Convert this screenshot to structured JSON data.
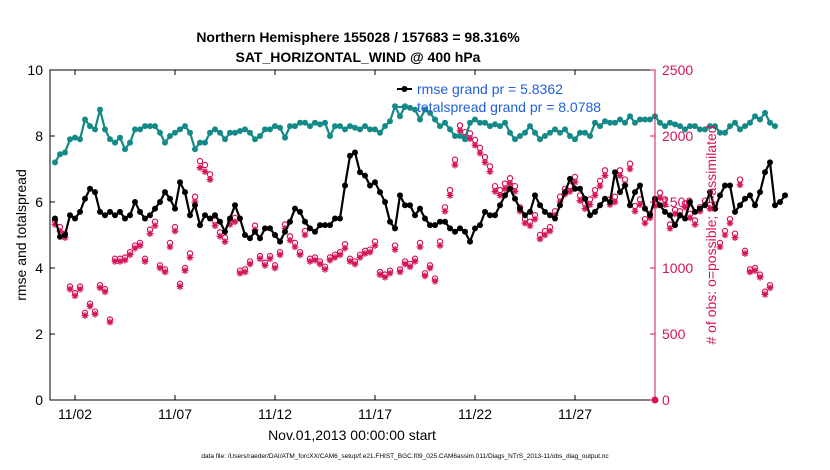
{
  "colors": {
    "rmse": "#000000",
    "spread": "#138a87",
    "obs": "#d4145a",
    "legend_text": "#1f5fd6",
    "axis": "#000000"
  },
  "chart_data": {
    "type": "line",
    "title_line1": "Northern Hemisphere 155028 / 157683 = 98.316%",
    "title_line2": "SAT_HORIZONTAL_WIND @ 400 hPa",
    "xlabel": "Nov.01,2013 00:00:00 start",
    "ylabel_left": "rmse and totalspread",
    "ylabel_right": "# of obs: o=possible; ×=assimilated",
    "footer": "data file: /Users/raeder/DAI/ATM_forcXX/CAM6_setup/f.e21.FHIST_BGC.f09_025.CAM6assim.011/Diags_NTrS_2013-11/obs_diag_output.nc",
    "x_ticks": [
      {
        "day": 2,
        "label": "11/02"
      },
      {
        "day": 7,
        "label": "11/07"
      },
      {
        "day": 12,
        "label": "11/12"
      },
      {
        "day": 17,
        "label": "11/17"
      },
      {
        "day": 22,
        "label": "11/22"
      },
      {
        "day": 27,
        "label": "11/27"
      }
    ],
    "xlim_days": [
      0.75,
      31.0
    ],
    "ylim_left": [
      0,
      10
    ],
    "yticks_left": [
      "0",
      "2",
      "4",
      "6",
      "8",
      "10"
    ],
    "ylim_right": [
      0,
      2500
    ],
    "yticks_right": [
      "0",
      "500",
      "1000",
      "1500",
      "2000",
      "2500"
    ],
    "legend": {
      "placement": "top-right",
      "entries": [
        {
          "series": "rmse",
          "label": "rmse grand pr = 5.8362"
        },
        {
          "series": "spread",
          "label": "totalspread grand pr = 8.0788"
        }
      ]
    },
    "time_step_days": 0.25,
    "start_day": 1.0,
    "series": [
      {
        "name": "rmse",
        "axis": "left",
        "values": [
          5.5,
          4.95,
          5.0,
          5.6,
          5.5,
          5.7,
          6.1,
          6.4,
          6.3,
          5.7,
          5.6,
          5.7,
          5.6,
          5.7,
          5.5,
          5.6,
          6.0,
          5.7,
          5.5,
          5.6,
          5.8,
          6.0,
          6.3,
          6.1,
          5.8,
          6.6,
          6.3,
          5.6,
          5.9,
          5.3,
          5.6,
          5.5,
          5.6,
          5.4,
          5.1,
          5.5,
          5.9,
          5.5,
          5.0,
          4.9,
          5.1,
          4.9,
          5.2,
          5.2,
          5.0,
          4.8,
          5.1,
          5.4,
          5.8,
          5.7,
          5.4,
          5.2,
          5.1,
          5.3,
          5.3,
          5.3,
          5.5,
          5.5,
          6.5,
          7.4,
          7.5,
          6.9,
          6.8,
          6.5,
          6.6,
          6.3,
          6.0,
          5.4,
          5.2,
          6.2,
          5.9,
          5.9,
          5.6,
          5.8,
          5.5,
          5.3,
          5.3,
          5.4,
          5.4,
          5.2,
          5.1,
          5.2,
          5.1,
          4.8,
          5.2,
          5.3,
          5.7,
          5.6,
          5.6,
          5.9,
          6.2,
          6.4,
          6.1,
          5.8,
          5.6,
          5.7,
          6.2,
          5.9,
          5.7,
          5.6,
          5.5,
          5.9,
          6.3,
          6.7,
          6.4,
          6.4,
          6.1,
          5.6,
          5.7,
          5.9,
          6.1,
          6.0,
          6.9,
          6.3,
          6.5,
          5.9,
          6.3,
          6.5,
          5.8,
          5.6,
          6.1,
          5.9,
          5.7,
          5.6,
          5.3,
          5.6,
          5.5,
          6.0,
          5.7,
          5.8,
          5.9,
          6.3,
          5.8,
          6.2,
          6.5,
          6.5,
          5.7,
          5.9,
          6.1,
          6.2,
          5.9,
          6.3,
          6.9,
          7.2,
          5.9,
          6.0,
          6.2
        ]
      },
      {
        "name": "totalspread",
        "axis": "left",
        "values": [
          7.2,
          7.45,
          7.5,
          7.9,
          7.95,
          7.9,
          8.5,
          8.3,
          8.2,
          8.8,
          8.2,
          7.9,
          7.8,
          7.95,
          7.6,
          7.8,
          8.2,
          8.2,
          8.3,
          8.3,
          8.3,
          8.1,
          7.8,
          8.0,
          8.1,
          8.2,
          8.3,
          8.1,
          7.6,
          7.8,
          7.8,
          8.1,
          8.2,
          8.1,
          7.9,
          8.1,
          8.1,
          8.15,
          8.2,
          8.1,
          7.9,
          8.0,
          8.2,
          8.2,
          8.3,
          8.25,
          7.95,
          8.3,
          8.3,
          8.4,
          8.4,
          8.3,
          8.4,
          8.35,
          8.4,
          8.0,
          8.3,
          8.3,
          8.2,
          8.3,
          8.25,
          8.2,
          8.3,
          8.2,
          8.2,
          8.1,
          8.3,
          8.45,
          8.9,
          8.6,
          8.9,
          8.85,
          8.8,
          8.5,
          8.8,
          8.7,
          8.5,
          8.3,
          8.4,
          8.2,
          8.0,
          8.0,
          7.9,
          8.4,
          8.5,
          8.4,
          8.4,
          8.3,
          8.35,
          8.3,
          8.4,
          8.1,
          7.9,
          8.0,
          8.1,
          8.3,
          8.1,
          7.9,
          8.0,
          8.1,
          8.2,
          8.1,
          8.2,
          8.0,
          7.9,
          8.1,
          8.1,
          8.0,
          8.4,
          8.3,
          8.45,
          8.4,
          8.4,
          8.5,
          8.4,
          8.6,
          8.4,
          8.5,
          8.5,
          8.5,
          8.6,
          8.4,
          8.3,
          8.4,
          8.35,
          8.3,
          8.2,
          8.3,
          8.3,
          8.2,
          8.2,
          8.3,
          8.3,
          8.1,
          8.1,
          8.3,
          8.4,
          8.2,
          8.3,
          8.4,
          8.6,
          8.5,
          8.7,
          8.4,
          8.3
        ]
      },
      {
        "name": "obs_assimilated",
        "axis": "right",
        "values": [
          1330,
          1280,
          1230,
          840,
          790,
          840,
          640,
          710,
          650,
          850,
          820,
          590,
          1050,
          1050,
          1060,
          1100,
          1150,
          1170,
          1050,
          1260,
          1320,
          1000,
          970,
          1160,
          1280,
          860,
          980,
          1080,
          1500,
          1760,
          1730,
          1670,
          1320,
          1240,
          1200,
          1330,
          1350,
          960,
          970,
          1030,
          1290,
          1070,
          1020,
          1070,
          1000,
          1100,
          1300,
          1210,
          1160,
          1100,
          1250,
          1050,
          1060,
          1030,
          990,
          1060,
          1080,
          1100,
          1150,
          1050,
          1030,
          1080,
          1110,
          1120,
          1170,
          950,
          930,
          960,
          1140,
          970,
          1030,
          1010,
          1050,
          1160,
          940,
          1000,
          900,
          1170,
          1430,
          1550,
          1780,
          2040,
          1990,
          1980,
          1930,
          1870,
          1800,
          1730,
          1580,
          1550,
          1600,
          1640,
          1580,
          1430,
          1340,
          1320,
          1370,
          1220,
          1250,
          1280,
          1400,
          1500,
          1560,
          1580,
          1650,
          1510,
          1450,
          1480,
          1550,
          1620,
          1700,
          1480,
          1500,
          1700,
          1630,
          1750,
          1430,
          1480,
          1340,
          1380,
          1470,
          1530,
          1480,
          1300,
          1410,
          1400,
          1460,
          1380,
          1330,
          1430,
          1480,
          1450,
          1450,
          1160,
          1250,
          1340,
          1230,
          1630,
          1110,
          970,
          980,
          930,
          800,
          850
        ]
      },
      {
        "name": "obs_possible",
        "axis": "right",
        "values": [
          1360,
          1310,
          1260,
          860,
          810,
          860,
          660,
          730,
          670,
          870,
          840,
          610,
          1070,
          1070,
          1080,
          1120,
          1170,
          1190,
          1070,
          1290,
          1350,
          1020,
          990,
          1190,
          1310,
          880,
          1000,
          1110,
          1540,
          1810,
          1780,
          1710,
          1360,
          1270,
          1230,
          1360,
          1380,
          980,
          990,
          1050,
          1320,
          1090,
          1040,
          1090,
          1020,
          1120,
          1330,
          1240,
          1190,
          1120,
          1280,
          1070,
          1080,
          1050,
          1010,
          1080,
          1100,
          1120,
          1180,
          1070,
          1050,
          1100,
          1130,
          1140,
          1200,
          970,
          950,
          980,
          1170,
          990,
          1050,
          1030,
          1070,
          1190,
          960,
          1020,
          920,
          1200,
          1460,
          1590,
          1820,
          2080,
          2030,
          2020,
          1970,
          1910,
          1840,
          1770,
          1620,
          1590,
          1640,
          1680,
          1620,
          1460,
          1370,
          1350,
          1400,
          1250,
          1280,
          1310,
          1430,
          1540,
          1600,
          1620,
          1690,
          1550,
          1490,
          1520,
          1590,
          1660,
          1740,
          1520,
          1540,
          1740,
          1670,
          1790,
          1470,
          1520,
          1370,
          1410,
          1500,
          1570,
          1520,
          1330,
          1440,
          1430,
          1490,
          1410,
          1360,
          1460,
          1510,
          1480,
          1480,
          1190,
          1280,
          1370,
          1260,
          1670,
          1130,
          990,
          1000,
          950,
          820,
          870
        ]
      }
    ],
    "grid": false
  }
}
